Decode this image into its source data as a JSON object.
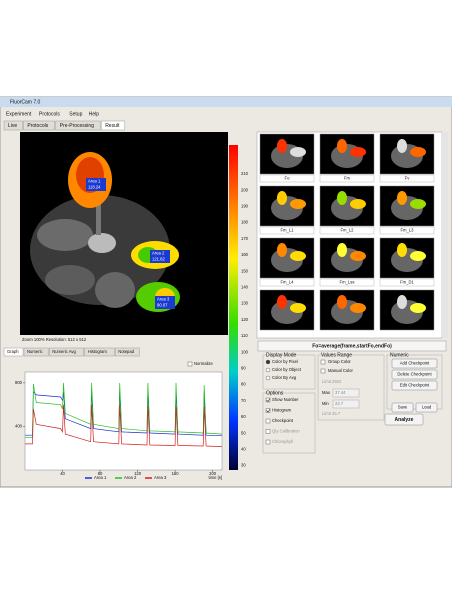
{
  "window": {
    "title": "FluorCam 7.0"
  },
  "menu": [
    "Experiment",
    "Protocols",
    "Setup",
    "Help"
  ],
  "tabs": [
    "Live",
    "Protocols",
    "Pre-Processing",
    "Result"
  ],
  "image": {
    "areas": [
      {
        "name": "Area 1",
        "value": "118.24"
      },
      {
        "name": "Area 2",
        "value": "121.82"
      },
      {
        "name": "Area 3",
        "value": "90.07"
      }
    ],
    "status": "Zoom 100%   Resolution: 512 x 512"
  },
  "colorbar": {
    "ticks": [
      "210",
      "200",
      "190",
      "180",
      "170",
      "160",
      "150",
      "140",
      "130",
      "120",
      "110",
      "100",
      "90",
      "80",
      "70",
      "60",
      "50",
      "40",
      "30"
    ]
  },
  "graph_tabs": [
    "Graph",
    "Numeric",
    "Numeric Avg",
    "Histogram",
    "Notepad"
  ],
  "normalize": "Normalize",
  "chart_data": {
    "type": "line",
    "xlabel": "time [s]",
    "x": [
      0,
      8,
      9,
      12,
      38,
      40,
      41,
      43,
      70,
      71,
      73,
      100,
      101,
      103,
      130,
      131,
      133,
      160,
      161,
      163,
      190,
      191,
      193,
      210
    ],
    "series": [
      {
        "name": "Area 1",
        "color": "#1f2fd0",
        "values": [
          320,
          320,
          720,
          690,
          670,
          640,
          720,
          470,
          380,
          730,
          380,
          350,
          730,
          350,
          340,
          720,
          340,
          330,
          720,
          330,
          320,
          710,
          320,
          315
        ]
      },
      {
        "name": "Area 2",
        "color": "#22c022",
        "values": [
          300,
          300,
          790,
          620,
          600,
          560,
          800,
          520,
          420,
          800,
          420,
          380,
          800,
          380,
          360,
          800,
          360,
          350,
          800,
          350,
          340,
          780,
          340,
          330
        ]
      },
      {
        "name": "Area 3",
        "color": "#d02020",
        "values": [
          240,
          240,
          560,
          420,
          380,
          350,
          600,
          330,
          260,
          600,
          260,
          240,
          600,
          240,
          230,
          590,
          230,
          225,
          590,
          225,
          220,
          580,
          220,
          215
        ]
      }
    ],
    "xlim": [
      0,
      210
    ],
    "ylim": [
      0,
      900
    ],
    "xticks": [
      40,
      80,
      120,
      160,
      200
    ],
    "yticks": [
      400,
      800
    ]
  },
  "thumbnails": [
    [
      "Fo",
      "Fm",
      "Fv"
    ],
    [
      "Fm_L1",
      "Fm_L2",
      "Fm_L3"
    ],
    [
      "Fm_L4",
      "Fm_Lss",
      "Fm_D1"
    ]
  ],
  "formula": "Fo=average(frame,startFo,endFo)",
  "display_mode": {
    "title": "Display Mode",
    "options": [
      "Color by Pixel",
      "Color by Object",
      "Color By Avg"
    ]
  },
  "options": {
    "title": "Options",
    "items": [
      "Show Number",
      "Histogram",
      "Checkpoint",
      "Qty Calibration",
      "Chlorophyll"
    ]
  },
  "values_range": {
    "title": "Values Range",
    "items": [
      "Group Color",
      "Manual Color"
    ],
    "limit_top": "Limit 2552",
    "max_label": "Max",
    "max": "37.44",
    "min_label": "Min",
    "min": "22.7",
    "limit_bottom": "Limit 25.7"
  },
  "numeric": {
    "title": "Numeric",
    "buttons": [
      "Add Checkpoint",
      "Delete Checkpoint",
      "Edit Checkpoint",
      "Save",
      "Load"
    ],
    "analyze": "Analyze"
  }
}
